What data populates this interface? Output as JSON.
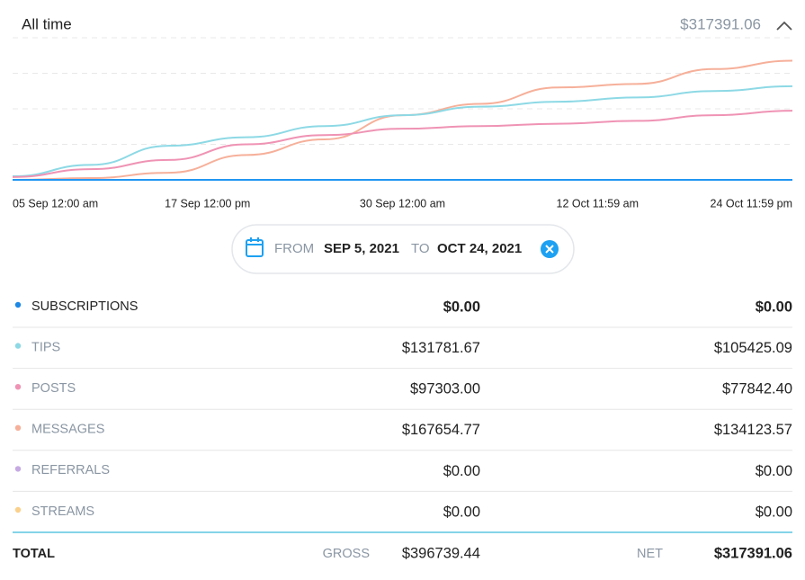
{
  "header": {
    "title": "All time",
    "amount": "$317391.06"
  },
  "chart_data": {
    "type": "line",
    "xticks": [
      "05 Sep 12:00 am",
      "17 Sep 12:00 pm",
      "30 Sep 12:00 am",
      "12 Oct 11:59 am",
      "24 Oct 11:59 pm"
    ],
    "ylim": [
      0,
      200000
    ],
    "ygrid": [
      50000,
      100000,
      150000,
      200000
    ],
    "series": [
      {
        "name": "Messages",
        "color": "#f6b09a",
        "values": [
          0,
          2500,
          10000,
          35000,
          57000,
          91000,
          107000,
          130000,
          135000,
          156000,
          167655
        ]
      },
      {
        "name": "Tips",
        "color": "#8dd9e5",
        "values": [
          5000,
          21000,
          48000,
          60000,
          75600,
          91000,
          103000,
          110000,
          116000,
          125000,
          131782
        ]
      },
      {
        "name": "Posts",
        "color": "#ef93b4",
        "values": [
          4000,
          15000,
          28000,
          50000,
          63000,
          72000,
          75600,
          79000,
          83000,
          91000,
          97303
        ]
      },
      {
        "name": "Subscriptions",
        "color": "#2196f3",
        "values": [
          0,
          0,
          0,
          0,
          0,
          0,
          0,
          0,
          0,
          0,
          0
        ]
      }
    ]
  },
  "filter": {
    "from_label": "FROM",
    "from": "SEP 5, 2021",
    "to_label": "TO",
    "to": "OCT 24, 2021"
  },
  "table": {
    "rows": [
      {
        "name": "SUBSCRIPTIONS",
        "color": "#1e88e5",
        "gross": "$0.00",
        "net": "$0.00",
        "active": true
      },
      {
        "name": "TIPS",
        "color": "#8dd9e5",
        "gross": "$131781.67",
        "net": "$105425.09",
        "active": false
      },
      {
        "name": "POSTS",
        "color": "#ef93b4",
        "gross": "$97303.00",
        "net": "$77842.40",
        "active": false
      },
      {
        "name": "MESSAGES",
        "color": "#f6b09a",
        "gross": "$167654.77",
        "net": "$134123.57",
        "active": false
      },
      {
        "name": "REFERRALS",
        "color": "#c6a9e2",
        "gross": "$0.00",
        "net": "$0.00",
        "active": false
      },
      {
        "name": "STREAMS",
        "color": "#fbd08c",
        "gross": "$0.00",
        "net": "$0.00",
        "active": false
      }
    ],
    "total": {
      "label": "TOTAL",
      "gross_label": "GROSS",
      "gross": "$396739.44",
      "net_label": "NET",
      "net": "$317391.06"
    }
  }
}
